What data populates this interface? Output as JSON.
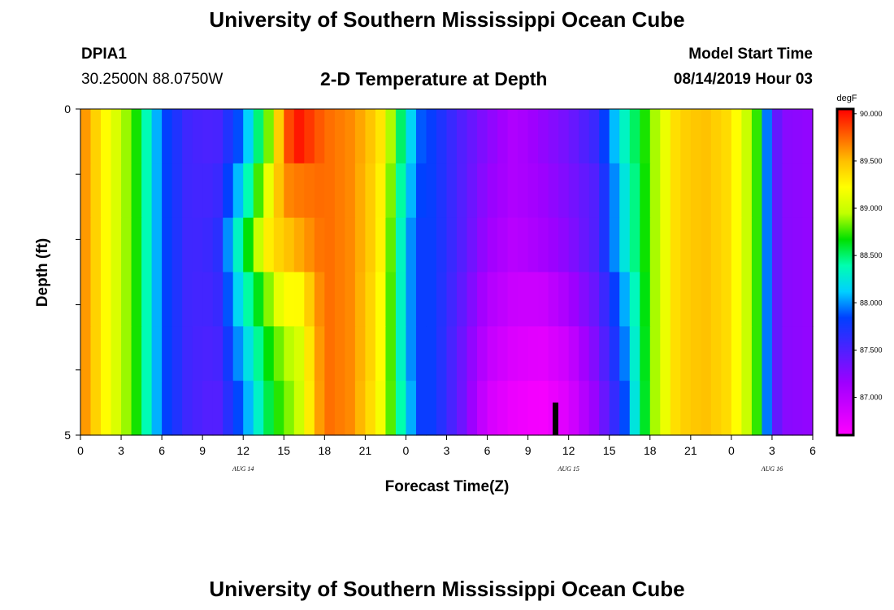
{
  "page": {
    "title_top": "University of Southern Mississippi Ocean Cube",
    "title_bottom": "University of Southern Mississippi Ocean Cube",
    "station_id": "DPIA1",
    "station_coords": "30.2500N 88.0750W",
    "plot_title": "2-D Temperature at Depth",
    "model_start_label": "Model Start Time",
    "model_start_value": "08/14/2019 Hour 03"
  },
  "chart_data": {
    "type": "heatmap",
    "title": "2-D Temperature at Depth",
    "xlabel": "Forecast Time(Z)",
    "ylabel": "Depth (ft)",
    "units": "degF",
    "x_range_hours": [
      0,
      54
    ],
    "x_ticks": [
      "0",
      "3",
      "6",
      "9",
      "12",
      "15",
      "18",
      "21",
      "0",
      "3",
      "6",
      "9",
      "12",
      "15",
      "18",
      "21",
      "0",
      "3",
      "6"
    ],
    "date_labels": [
      {
        "text": "AUG 14",
        "hour": 12
      },
      {
        "text": "AUG 15",
        "hour": 36
      },
      {
        "text": "AUG 16",
        "hour": 51
      }
    ],
    "y_range_ft": [
      0,
      5
    ],
    "y_ticks": [
      0,
      1,
      2,
      3,
      4,
      5
    ],
    "y_tick_labels": [
      "0",
      "",
      "",
      "",
      "",
      "5"
    ],
    "depth_levels_ft": [
      0,
      1,
      2,
      3,
      4,
      5
    ],
    "colorbar": {
      "min": 86.6,
      "max": 90.05,
      "labels": [
        "90.000",
        "89.500",
        "89.000",
        "88.500",
        "88.000",
        "87.500",
        "87.000"
      ],
      "label_values": [
        90.0,
        89.5,
        89.0,
        88.5,
        88.0,
        87.5,
        87.0
      ]
    },
    "marker": {
      "hour": 35.0,
      "depth_from": 4.5,
      "depth_to": 5.0
    },
    "profile_hours": [
      0,
      2,
      4,
      6,
      8,
      10,
      12,
      14,
      15,
      16,
      18,
      20,
      22,
      24,
      25,
      26,
      28,
      30,
      32,
      34,
      36,
      38,
      40,
      42,
      44,
      46,
      48,
      50,
      51,
      52,
      54
    ],
    "profiles": [
      [
        89.7,
        89.2,
        88.75,
        87.9,
        87.55,
        87.5,
        87.95,
        88.9,
        89.75,
        90.0,
        89.75,
        89.65,
        89.4,
        88.3,
        87.9,
        87.8,
        87.5,
        87.25,
        87.05,
        87.2,
        87.35,
        87.6,
        88.3,
        88.8,
        89.4,
        89.5,
        89.35,
        88.7,
        87.5,
        87.25,
        87.2
      ],
      [
        89.7,
        89.2,
        88.75,
        87.9,
        87.55,
        87.55,
        88.2,
        89.2,
        89.65,
        89.7,
        89.75,
        89.65,
        89.35,
        88.2,
        87.85,
        87.8,
        87.5,
        87.2,
        87.05,
        87.15,
        87.3,
        87.5,
        88.2,
        88.8,
        89.4,
        89.5,
        89.35,
        88.7,
        87.5,
        87.25,
        87.2
      ],
      [
        89.7,
        89.2,
        88.75,
        87.9,
        87.55,
        87.6,
        88.5,
        89.35,
        89.45,
        89.55,
        89.75,
        89.65,
        89.35,
        88.1,
        87.8,
        87.8,
        87.5,
        87.15,
        87.0,
        87.1,
        87.25,
        87.5,
        88.2,
        88.8,
        89.4,
        89.5,
        89.35,
        88.7,
        87.5,
        87.25,
        87.2
      ],
      [
        89.7,
        89.2,
        88.75,
        87.9,
        87.55,
        87.55,
        88.3,
        88.9,
        89.25,
        89.2,
        89.75,
        89.65,
        89.3,
        88.1,
        87.8,
        87.8,
        87.45,
        87.05,
        86.9,
        86.9,
        87.1,
        87.4,
        88.0,
        88.8,
        89.4,
        89.5,
        89.35,
        88.7,
        87.5,
        87.25,
        87.2
      ],
      [
        89.7,
        89.2,
        88.75,
        87.9,
        87.55,
        87.5,
        88.1,
        88.7,
        88.9,
        89.0,
        89.75,
        89.65,
        89.3,
        88.1,
        87.8,
        87.8,
        87.4,
        86.95,
        86.8,
        86.75,
        86.9,
        87.3,
        87.9,
        88.8,
        89.4,
        89.5,
        89.35,
        88.7,
        87.5,
        87.25,
        87.2
      ],
      [
        89.7,
        89.2,
        88.75,
        87.9,
        87.55,
        87.45,
        87.95,
        88.6,
        88.8,
        88.95,
        89.75,
        89.65,
        89.25,
        88.2,
        87.8,
        87.8,
        87.4,
        86.85,
        86.7,
        86.65,
        86.8,
        87.2,
        87.8,
        88.8,
        89.4,
        89.5,
        89.35,
        88.7,
        87.5,
        87.25,
        87.2
      ]
    ]
  }
}
